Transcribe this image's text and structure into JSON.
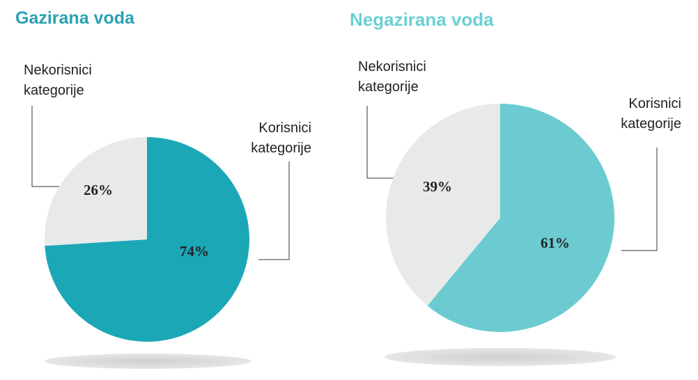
{
  "chart_data": [
    {
      "type": "pie",
      "title": "Gazirana voda",
      "categories": [
        "Korisnici kategorije",
        "Nekorisnici kategorije"
      ],
      "values": [
        74,
        26
      ],
      "value_labels": [
        "74%",
        "26%"
      ],
      "colors": [
        "#1ba7b6",
        "#e8eaea"
      ],
      "title_color": "#2aa1b2"
    },
    {
      "type": "pie",
      "title": "Negazirana voda",
      "categories": [
        "Korisnici kategorije",
        "Nekorisnici kategorije"
      ],
      "values": [
        61,
        39
      ],
      "value_labels": [
        "61%",
        "39%"
      ],
      "colors": [
        "#6ccbd0",
        "#e8eaea"
      ],
      "title_color": "#6ccfd3"
    }
  ]
}
